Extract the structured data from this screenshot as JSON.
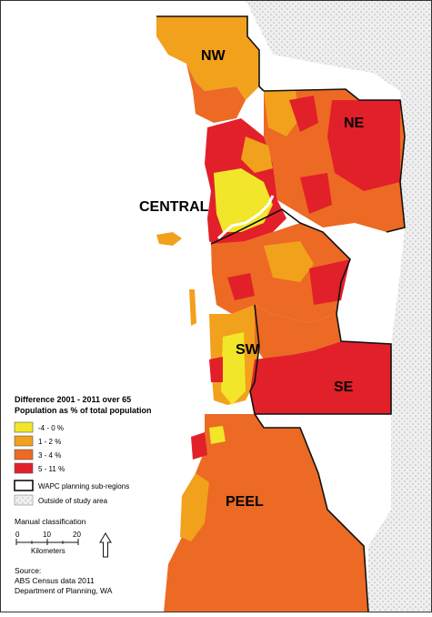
{
  "colors": {
    "yellow": "#f2e62a",
    "light_orange": "#f2a11c",
    "orange": "#ec6a23",
    "red": "#e2202a",
    "outside": "#e6e6e6",
    "outline": "#111111"
  },
  "regions": {
    "nw": "NW",
    "ne": "NE",
    "central": "CENTRAL",
    "sw": "SW",
    "se": "SE",
    "peel": "PEEL"
  },
  "legend": {
    "title_line1": "Difference 2001 - 2011 over 65",
    "title_line2": "Population as % of total population",
    "items": [
      {
        "label": "-4 - 0 %",
        "color": "#f2e62a"
      },
      {
        "label": "1 - 2 %",
        "color": "#f2a11c"
      },
      {
        "label": "3 - 4 %",
        "color": "#ec6a23"
      },
      {
        "label": "5 - 11 %",
        "color": "#e2202a"
      }
    ],
    "boundary_label": "WAPC planning sub-regions",
    "outside_label": "Outside of study area"
  },
  "scale": {
    "classification": "Manual classification",
    "ticks": [
      "0",
      "10",
      "20"
    ],
    "unit": "Kilometers"
  },
  "source": {
    "line1": "Source:",
    "line2": "ABS Census data 2011",
    "line3": "Department of Planning, WA"
  }
}
